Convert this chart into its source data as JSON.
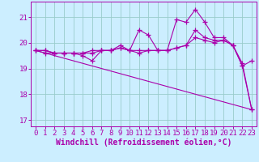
{
  "title": "",
  "xlabel": "Windchill (Refroidissement éolien,°C)",
  "bg_color": "#cceeff",
  "line_color": "#aa00aa",
  "grid_color": "#99cccc",
  "xlim": [
    -0.5,
    23.5
  ],
  "ylim": [
    16.75,
    21.6
  ],
  "xticks": [
    0,
    1,
    2,
    3,
    4,
    5,
    6,
    7,
    8,
    9,
    10,
    11,
    12,
    13,
    14,
    15,
    16,
    17,
    18,
    19,
    20,
    21,
    22,
    23
  ],
  "yticks": [
    17,
    18,
    19,
    20,
    21
  ],
  "line1_x": [
    0,
    1,
    2,
    3,
    4,
    5,
    6,
    7,
    8,
    9,
    10,
    11,
    12,
    13,
    14,
    15,
    16,
    17,
    18,
    19,
    20,
    21,
    22,
    23
  ],
  "line1_y": [
    19.7,
    19.7,
    19.6,
    19.6,
    19.6,
    19.6,
    19.6,
    19.7,
    19.7,
    19.8,
    19.7,
    19.7,
    19.7,
    19.7,
    19.7,
    19.8,
    19.9,
    20.5,
    20.2,
    20.1,
    20.1,
    19.9,
    19.1,
    19.3
  ],
  "line2_x": [
    0,
    1,
    2,
    3,
    4,
    5,
    6,
    7,
    8,
    9,
    10,
    11,
    12,
    13,
    14,
    15,
    16,
    17,
    18,
    19,
    20,
    21,
    22,
    23
  ],
  "line2_y": [
    19.7,
    19.7,
    19.6,
    19.6,
    19.6,
    19.6,
    19.7,
    19.7,
    19.7,
    19.9,
    19.7,
    20.5,
    20.3,
    19.7,
    19.7,
    20.9,
    20.8,
    21.3,
    20.8,
    20.2,
    20.2,
    19.9,
    19.2,
    17.4
  ],
  "line3_x": [
    0,
    1,
    2,
    3,
    4,
    5,
    6,
    7,
    8,
    9,
    10,
    11,
    12,
    13,
    14,
    15,
    16,
    17,
    18,
    19,
    20,
    21,
    22,
    23
  ],
  "line3_y": [
    19.7,
    19.6,
    19.6,
    19.6,
    19.6,
    19.5,
    19.3,
    19.7,
    19.7,
    19.8,
    19.7,
    19.6,
    19.7,
    19.7,
    19.7,
    19.8,
    19.9,
    20.2,
    20.1,
    20.0,
    20.1,
    19.9,
    19.1,
    17.4
  ],
  "line4_x": [
    0,
    23
  ],
  "line4_y": [
    19.7,
    17.4
  ],
  "tick_fontsize": 6.5,
  "xlabel_fontsize": 7
}
